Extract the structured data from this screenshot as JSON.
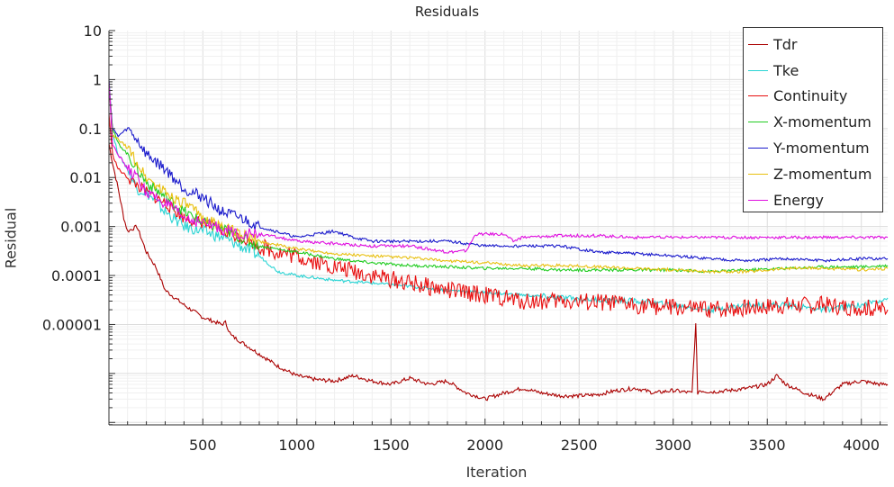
{
  "chart_data": {
    "type": "line",
    "title": "Residuals",
    "xlabel": "Iteration",
    "ylabel": "Residual",
    "xlim": [
      1,
      4140
    ],
    "ylim_log10": [
      -7.05,
      1
    ],
    "yscale": "log",
    "grid": true,
    "legend_position": "top-right",
    "x_ticks": [
      500,
      1000,
      1500,
      2000,
      2500,
      3000,
      3500,
      4000
    ],
    "x_tick_labels": [
      "500",
      "1000",
      "1500",
      "2000",
      "2500",
      "3000",
      "3500",
      "4000"
    ],
    "y_ticks_log10": [
      1,
      0,
      -1,
      -2,
      -3,
      -4,
      -5
    ],
    "y_tick_labels": [
      "10",
      "1",
      "0.1",
      "0.01",
      "0.001",
      "0.0001",
      "0.00001"
    ],
    "series": [
      {
        "name": "Tdr",
        "color": "#aa0000",
        "x": [
          1,
          20,
          50,
          80,
          100,
          150,
          200,
          250,
          300,
          400,
          500,
          600,
          620,
          650,
          700,
          800,
          900,
          1000,
          1100,
          1200,
          1300,
          1400,
          1500,
          1600,
          1700,
          1800,
          1900,
          1950,
          2000,
          2100,
          2200,
          2300,
          2400,
          2500,
          2600,
          2700,
          2800,
          2900,
          3000,
          3100,
          3120,
          3130,
          3140,
          3200,
          3300,
          3400,
          3500,
          3550,
          3600,
          3700,
          3800,
          3900,
          4000,
          4100,
          4140
        ],
        "y": [
          0.05,
          0.02,
          0.006,
          0.0015,
          0.0008,
          0.001,
          0.0003,
          0.00015,
          5e-05,
          2.5e-05,
          1.4e-05,
          1e-05,
          1.1e-05,
          6e-06,
          4.5e-06,
          2.5e-06,
          1.4e-06,
          9e-07,
          7.5e-07,
          7e-07,
          9e-07,
          7e-07,
          6e-07,
          8e-07,
          6e-07,
          7e-07,
          4e-07,
          3.5e-07,
          3e-07,
          4e-07,
          5e-07,
          4e-07,
          3.5e-07,
          3.5e-07,
          3.7e-07,
          4.5e-07,
          5e-07,
          4e-07,
          4.5e-07,
          4e-07,
          1e-05,
          4e-07,
          4.5e-07,
          4.2e-07,
          4.5e-07,
          5e-07,
          6e-07,
          9e-07,
          6e-07,
          4e-07,
          3e-07,
          6e-07,
          7e-07,
          6e-07,
          6e-07
        ]
      },
      {
        "name": "Tke",
        "color": "#2ad4d4",
        "x": [
          1,
          20,
          50,
          100,
          150,
          200,
          300,
          400,
          500,
          600,
          700,
          800,
          900,
          1000,
          1200,
          1400,
          1600,
          1800,
          2000,
          2200,
          2400,
          2600,
          2800,
          3000,
          3200,
          3400,
          3600,
          3800,
          4000,
          4140
        ],
        "y": [
          0.8,
          0.08,
          0.03,
          0.015,
          0.006,
          0.005,
          0.002,
          0.001,
          0.0008,
          0.0006,
          0.0004,
          0.00025,
          0.00012,
          0.0001,
          8e-05,
          7e-05,
          6e-05,
          5e-05,
          4.5e-05,
          4e-05,
          3.5e-05,
          3.2e-05,
          3e-05,
          2.5e-05,
          2e-05,
          2.5e-05,
          2.5e-05,
          2e-05,
          2.5e-05,
          3.5e-05
        ]
      },
      {
        "name": "Continuity",
        "color": "#e81010",
        "x": [
          1,
          20,
          50,
          100,
          150,
          200,
          300,
          400,
          500,
          600,
          700,
          800,
          900,
          1000,
          1200,
          1400,
          1600,
          1800,
          2000,
          2200,
          2400,
          2600,
          2800,
          3000,
          3200,
          3400,
          3600,
          3800,
          4000,
          4140
        ],
        "y": [
          0.2,
          0.03,
          0.015,
          0.01,
          0.007,
          0.005,
          0.003,
          0.0015,
          0.0012,
          0.0008,
          0.0006,
          0.0004,
          0.0003,
          0.00025,
          0.00015,
          0.0001,
          7e-05,
          5e-05,
          4e-05,
          3e-05,
          3e-05,
          2.8e-05,
          2.5e-05,
          2.2e-05,
          2e-05,
          2.2e-05,
          2.5e-05,
          2.5e-05,
          2.2e-05,
          2e-05
        ]
      },
      {
        "name": "X-momentum",
        "color": "#22cc22",
        "x": [
          1,
          20,
          50,
          100,
          150,
          200,
          300,
          400,
          500,
          600,
          700,
          800,
          1000,
          1200,
          1400,
          1600,
          1800,
          2000,
          2200,
          2400,
          2600,
          2800,
          3000,
          3200,
          3400,
          3600,
          3800,
          4000,
          4140
        ],
        "y": [
          0.8,
          0.1,
          0.05,
          0.03,
          0.015,
          0.008,
          0.004,
          0.002,
          0.0012,
          0.0009,
          0.0006,
          0.0004,
          0.0003,
          0.00022,
          0.00018,
          0.00016,
          0.00015,
          0.00014,
          0.00014,
          0.00013,
          0.00013,
          0.00013,
          0.00013,
          0.00012,
          0.00013,
          0.00014,
          0.00015,
          0.00015,
          0.00016
        ]
      },
      {
        "name": "Y-momentum",
        "color": "#1a1acc",
        "x": [
          1,
          20,
          50,
          100,
          150,
          200,
          300,
          400,
          500,
          600,
          700,
          800,
          1000,
          1100,
          1200,
          1300,
          1400,
          1600,
          1800,
          2000,
          2200,
          2400,
          2600,
          2800,
          3000,
          3200,
          3400,
          3600,
          3800,
          4000,
          4140
        ],
        "y": [
          1,
          0.1,
          0.07,
          0.1,
          0.06,
          0.03,
          0.015,
          0.006,
          0.004,
          0.002,
          0.0015,
          0.001,
          0.0006,
          0.0007,
          0.0008,
          0.0006,
          0.0005,
          0.0005,
          0.0005,
          0.0004,
          0.0004,
          0.0004,
          0.0003,
          0.00028,
          0.00025,
          0.00022,
          0.0002,
          0.00022,
          0.0002,
          0.00022,
          0.00022
        ]
      },
      {
        "name": "Z-momentum",
        "color": "#e8c010",
        "x": [
          1,
          20,
          50,
          100,
          150,
          200,
          300,
          400,
          500,
          600,
          700,
          800,
          1000,
          1200,
          1400,
          1600,
          1800,
          2000,
          2200,
          2400,
          2600,
          2800,
          3000,
          3200,
          3400,
          3600,
          3800,
          4000,
          4140
        ],
        "y": [
          0.8,
          0.07,
          0.06,
          0.04,
          0.02,
          0.01,
          0.005,
          0.003,
          0.0015,
          0.001,
          0.0007,
          0.0005,
          0.00035,
          0.00028,
          0.00025,
          0.00023,
          0.0002,
          0.00018,
          0.00016,
          0.00016,
          0.00015,
          0.00014,
          0.00013,
          0.00012,
          0.00012,
          0.00014,
          0.00014,
          0.00013,
          0.00014
        ]
      },
      {
        "name": "Energy",
        "color": "#e010e0",
        "x": [
          1,
          20,
          50,
          100,
          150,
          200,
          300,
          400,
          500,
          600,
          700,
          800,
          900,
          1000,
          1200,
          1400,
          1600,
          1800,
          1900,
          1950,
          2000,
          2100,
          2150,
          2200,
          2400,
          2600,
          2800,
          3000,
          3200,
          3400,
          3600,
          3800,
          4000,
          4140
        ],
        "y": [
          0.9,
          0.05,
          0.03,
          0.015,
          0.01,
          0.005,
          0.003,
          0.0015,
          0.0012,
          0.0009,
          0.0007,
          0.0007,
          0.0006,
          0.0005,
          0.00045,
          0.0004,
          0.0004,
          0.0003,
          0.00032,
          0.0007,
          0.0007,
          0.0007,
          0.0005,
          0.0006,
          0.00065,
          0.00065,
          0.0006,
          0.0006,
          0.0006,
          0.0006,
          0.0006,
          0.0006,
          0.0006,
          0.0006
        ]
      }
    ]
  }
}
